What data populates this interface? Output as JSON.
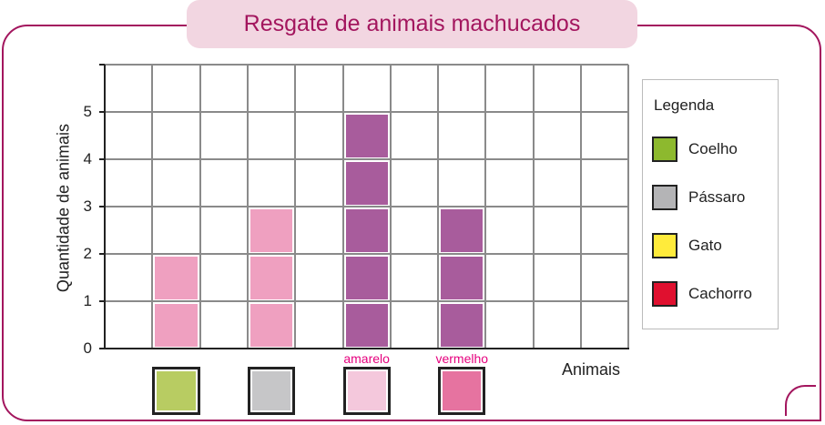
{
  "chart_data": {
    "type": "bar",
    "title": "Resgate de animais machucados",
    "xlabel": "Animais",
    "ylabel": "Quantidade de animais",
    "ylim": [
      0,
      6
    ],
    "yticks": [
      "0",
      "1",
      "2",
      "3",
      "4",
      "5"
    ],
    "grid": true,
    "values": [
      2,
      3,
      5,
      3
    ],
    "bar_colors": [
      "#efa0c0",
      "#efa0c0",
      "#a85c9c",
      "#a85c9c"
    ],
    "category_swatches": [
      {
        "color": "#b8cc62",
        "label": ""
      },
      {
        "color": "#c6c6c8",
        "label": ""
      },
      {
        "color": "#f4c8dc",
        "label": "amarelo"
      },
      {
        "color": "#e673a0",
        "label": "vermelho"
      }
    ],
    "legend": {
      "title": "Legenda",
      "placement": "right",
      "items": [
        {
          "label": "Coelho",
          "color": "#8db92e"
        },
        {
          "label": "Pássaro",
          "color": "#b4b4b6"
        },
        {
          "label": "Gato",
          "color": "#ffeb3b"
        },
        {
          "label": "Cachorro",
          "color": "#e0102f"
        }
      ]
    }
  }
}
